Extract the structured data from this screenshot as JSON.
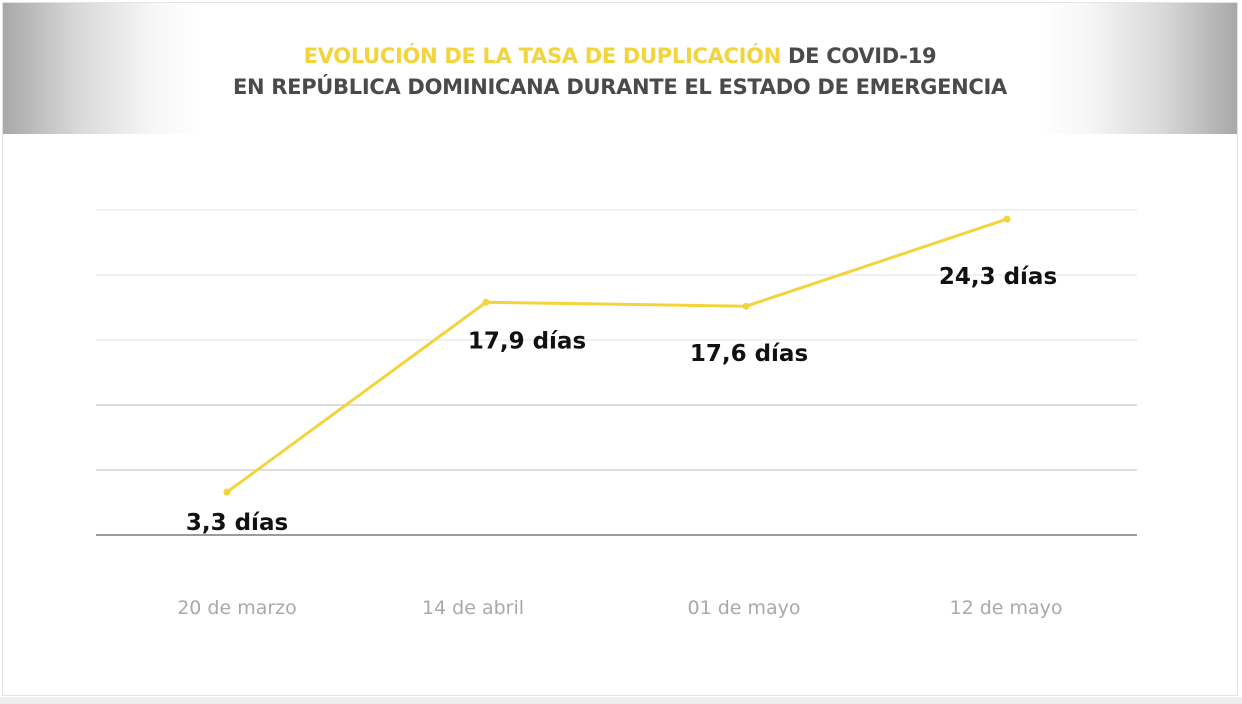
{
  "title": {
    "line1_highlight": "EVOLUCIÓN DE LA TASA DE DUPLICACIÓN",
    "line1_rest": " DE COVID-19",
    "line2": "EN REPÚBLICA DOMINICANA DURANTE EL ESTADO DE EMERGENCIA"
  },
  "colors": {
    "accent": "#f2d43c",
    "title_text": "#4a4a4a",
    "tick_text": "#a9a9a9",
    "data_label": "#111111"
  },
  "chart_data": {
    "type": "line",
    "categories": [
      "20 de marzo",
      "14 de abril",
      "01 de mayo",
      "12 de mayo"
    ],
    "series": [
      {
        "values": [
          3.3,
          17.9,
          17.6,
          24.3
        ],
        "labels": [
          "3,3 días",
          "17,9 días",
          "17,6 días",
          "24,3 días"
        ]
      }
    ],
    "ylim": [
      0,
      25
    ],
    "grid": true,
    "legend": "none"
  }
}
